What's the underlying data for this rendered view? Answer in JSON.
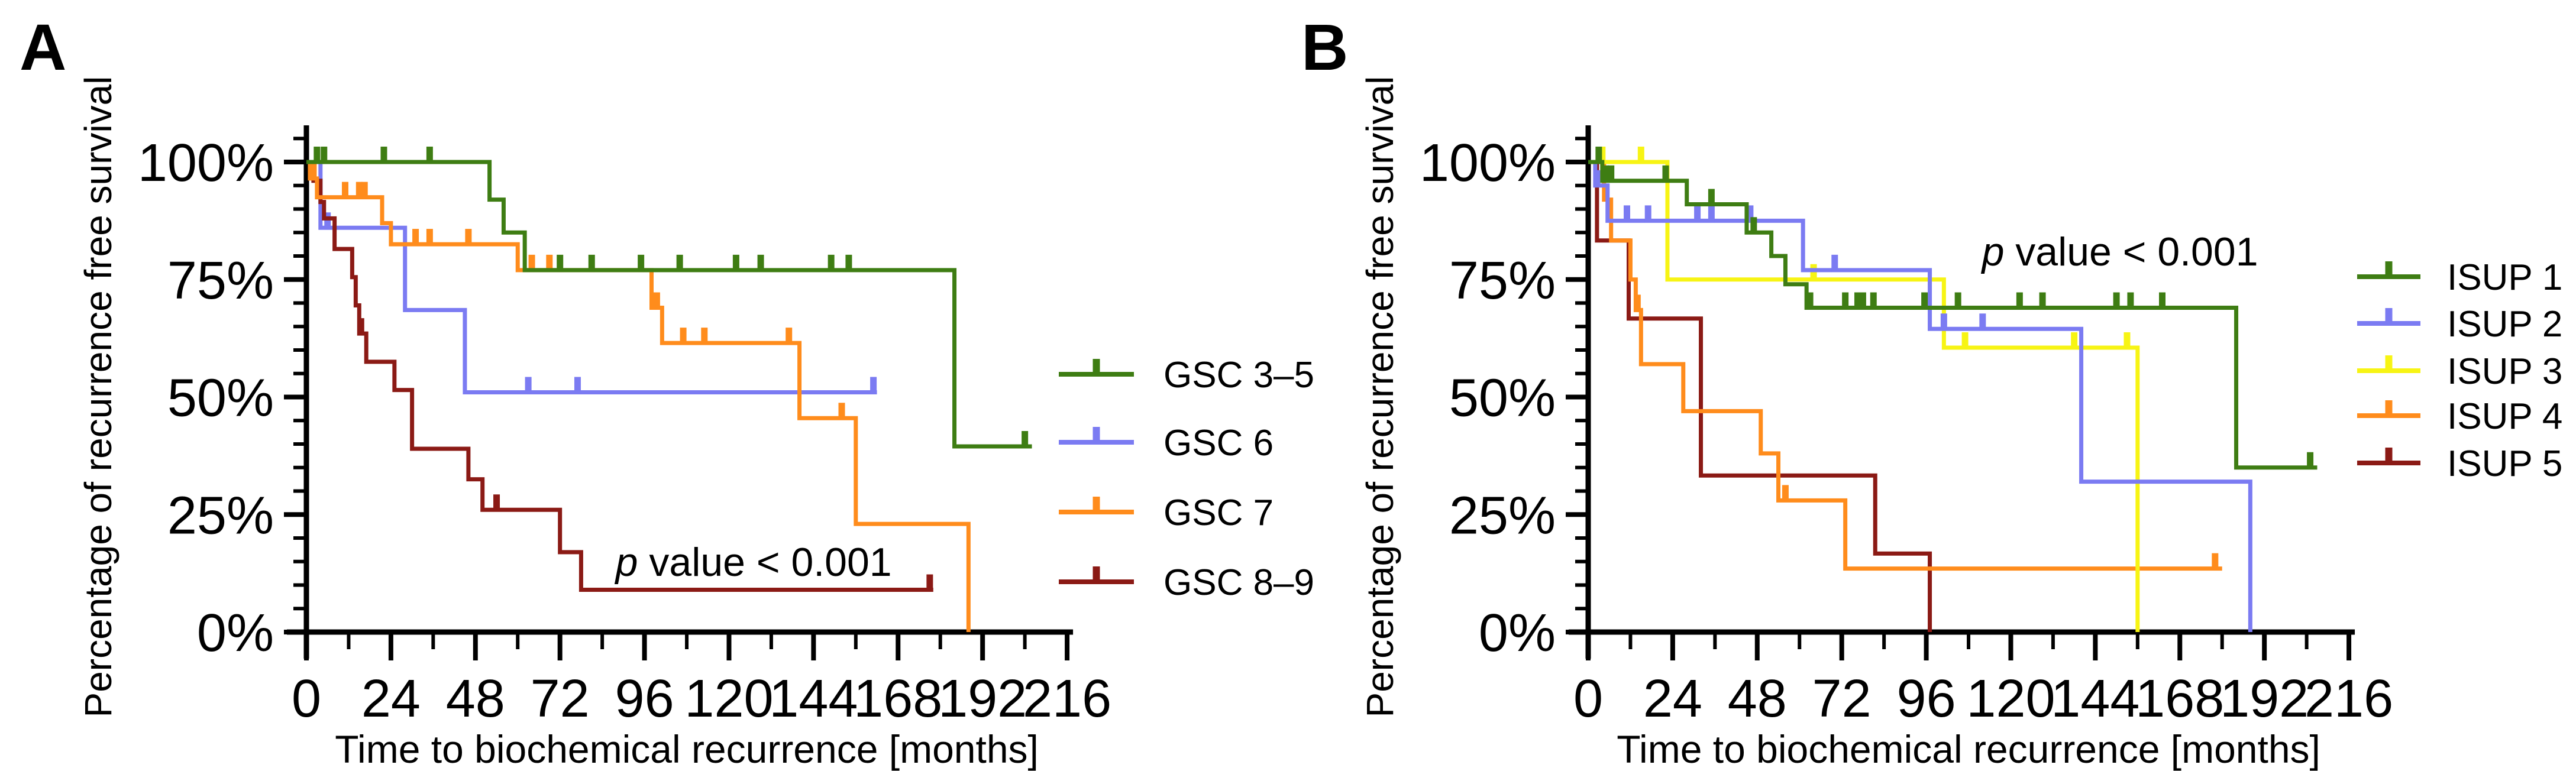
{
  "figure": {
    "background": "#ffffff",
    "axis_color": "#000000"
  },
  "chart_data": [
    {
      "type": "line",
      "subtype": "kaplan-meier-step",
      "panel_label": "A",
      "xlabel": "Time to biochemical recurrence [months]",
      "ylabel": "Percentage of recurrence free survival",
      "xlim": [
        0,
        216
      ],
      "ylim": [
        0,
        100
      ],
      "x_ticks": [
        0,
        24,
        48,
        72,
        96,
        120,
        144,
        168,
        192,
        216
      ],
      "x_minor_tick_step": 12,
      "y_ticks_pct": [
        0,
        25,
        50,
        75,
        100
      ],
      "y_tick_labels": [
        "0%",
        "25%",
        "50%",
        "75%",
        "100%"
      ],
      "y_minor_tick_step": 5,
      "grid": false,
      "legend_position": "right-outside",
      "annotation": {
        "italic_part": "p",
        "rest": " value < 0.001",
        "x_months": 127,
        "y_pct": 15
      },
      "series": [
        {
          "name": "GSC 6",
          "color": "#7b7bf2",
          "steps_month_pct": [
            [
              0,
              100
            ],
            [
              4,
              86
            ],
            [
              28,
              68.5
            ],
            [
              45,
              51
            ]
          ],
          "end_month": 162,
          "censors_month_pct": [
            [
              6,
              86
            ],
            [
              63,
              51
            ],
            [
              77,
              51
            ],
            [
              161,
              51
            ]
          ]
        },
        {
          "name": "GSC 8–9",
          "color": "#8b1a15",
          "steps_month_pct": [
            [
              0,
              100
            ],
            [
              2,
              96
            ],
            [
              4,
              91.5
            ],
            [
              5,
              88
            ],
            [
              8,
              81.5
            ],
            [
              13,
              75.5
            ],
            [
              14,
              69.5
            ],
            [
              15,
              63.5
            ],
            [
              17,
              57.5
            ],
            [
              25,
              51.5
            ],
            [
              30,
              39
            ],
            [
              46,
              32.5
            ],
            [
              50,
              26
            ],
            [
              72,
              17
            ],
            [
              78,
              9
            ]
          ],
          "end_month": 178,
          "censors_month_pct": [
            [
              15.5,
              63.5
            ],
            [
              54,
              26
            ],
            [
              177,
              9
            ]
          ]
        },
        {
          "name": "GSC 7",
          "color": "#ff8c1c",
          "steps_month_pct": [
            [
              0,
              100
            ],
            [
              1,
              96.5
            ],
            [
              3,
              92.5
            ],
            [
              21.5,
              87
            ],
            [
              24,
              82.5
            ],
            [
              60,
              77
            ],
            [
              98,
              69
            ],
            [
              101,
              61.5
            ],
            [
              140,
              45.5
            ],
            [
              156,
              23
            ],
            [
              188,
              0
            ]
          ],
          "end_month": 188,
          "censors_month_pct": [
            [
              2,
              96.5
            ],
            [
              11,
              92.5
            ],
            [
              15,
              92.5
            ],
            [
              16.5,
              92.5
            ],
            [
              31,
              82.5
            ],
            [
              35,
              82.5
            ],
            [
              46,
              82.5
            ],
            [
              64,
              77
            ],
            [
              69,
              77
            ],
            [
              99.5,
              69
            ],
            [
              107,
              61.5
            ],
            [
              113,
              61.5
            ],
            [
              137,
              61.5
            ],
            [
              152,
              45.5
            ]
          ]
        },
        {
          "name": "GSC 3–5",
          "color": "#3e7d13",
          "steps_month_pct": [
            [
              0,
              100
            ],
            [
              52,
              92
            ],
            [
              56,
              85
            ],
            [
              62,
              77
            ],
            [
              184,
              39.5
            ]
          ],
          "end_month": 206,
          "censors_month_pct": [
            [
              3,
              100
            ],
            [
              5,
              100
            ],
            [
              22,
              100
            ],
            [
              35,
              100
            ],
            [
              72,
              77
            ],
            [
              81,
              77
            ],
            [
              95,
              77
            ],
            [
              106,
              77
            ],
            [
              122,
              77
            ],
            [
              129,
              77
            ],
            [
              149,
              77
            ],
            [
              154,
              77
            ],
            [
              204,
              39.5
            ]
          ]
        }
      ],
      "legend_order": [
        "GSC 3–5",
        "GSC 6",
        "GSC 7",
        "GSC 8–9"
      ]
    },
    {
      "type": "line",
      "subtype": "kaplan-meier-step",
      "panel_label": "B",
      "xlabel": "Time to biochemical recurrence [months]",
      "ylabel": "Percentage of recurrence free survival",
      "xlim": [
        0,
        216
      ],
      "ylim": [
        0,
        100
      ],
      "x_ticks": [
        0,
        24,
        48,
        72,
        96,
        120,
        144,
        168,
        192,
        216
      ],
      "x_minor_tick_step": 12,
      "y_ticks_pct": [
        0,
        25,
        50,
        75,
        100
      ],
      "y_tick_labels": [
        "0%",
        "25%",
        "50%",
        "75%",
        "100%"
      ],
      "y_minor_tick_step": 5,
      "grid": false,
      "legend_position": "right-outside",
      "annotation": {
        "italic_part": "p",
        "rest": " value < 0.001",
        "x_months": 151,
        "y_pct": 81
      },
      "series": [
        {
          "name": "ISUP 5",
          "color": "#8b1a15",
          "steps_month_pct": [
            [
              0,
              100
            ],
            [
              2.5,
              83.3
            ],
            [
              11.5,
              66.7
            ],
            [
              32,
              33.3
            ],
            [
              81.5,
              16.7
            ],
            [
              97,
              0
            ]
          ],
          "end_month": 97,
          "censors_month_pct": []
        },
        {
          "name": "ISUP 4",
          "color": "#ff8c1c",
          "steps_month_pct": [
            [
              0,
              100
            ],
            [
              4.5,
              92
            ],
            [
              6.5,
              83.3
            ],
            [
              12,
              75
            ],
            [
              13.5,
              68.5
            ],
            [
              15,
              57
            ],
            [
              27,
              47
            ],
            [
              49,
              38
            ],
            [
              54,
              28
            ],
            [
              73,
              13.5
            ]
          ],
          "end_month": 180,
          "censors_month_pct": [
            [
              5,
              92
            ],
            [
              14,
              68.5
            ],
            [
              56,
              28
            ],
            [
              178,
              13.5
            ]
          ]
        },
        {
          "name": "ISUP 3",
          "color": "#f7f414",
          "steps_month_pct": [
            [
              0,
              100
            ],
            [
              22.5,
              75
            ],
            [
              101,
              60.5
            ],
            [
              156,
              0
            ]
          ],
          "end_month": 156,
          "censors_month_pct": [
            [
              4,
              100
            ],
            [
              15,
              100
            ],
            [
              64,
              75
            ],
            [
              107,
              60.5
            ],
            [
              138,
              60.5
            ],
            [
              153,
              60.5
            ]
          ]
        },
        {
          "name": "ISUP 2",
          "color": "#7b7bf2",
          "steps_month_pct": [
            [
              0,
              100
            ],
            [
              2,
              95
            ],
            [
              5.5,
              87.5
            ],
            [
              61,
              77
            ],
            [
              97,
              64.5
            ],
            [
              140,
              32
            ],
            [
              188,
              0
            ]
          ],
          "end_month": 188,
          "censors_month_pct": [
            [
              2.5,
              95
            ],
            [
              11,
              87.5
            ],
            [
              17,
              87.5
            ],
            [
              31,
              87.5
            ],
            [
              35,
              87.5
            ],
            [
              46,
              87.5
            ],
            [
              70,
              77
            ],
            [
              101,
              64.5
            ],
            [
              112,
              64.5
            ]
          ]
        },
        {
          "name": "ISUP 1",
          "color": "#3e7d13",
          "steps_month_pct": [
            [
              0,
              100
            ],
            [
              4,
              96
            ],
            [
              28,
              91
            ],
            [
              45,
              85
            ],
            [
              52,
              80
            ],
            [
              56,
              74
            ],
            [
              62,
              69
            ]
          ],
          "end_month": 207,
          "censors_month_pct": [
            [
              3,
              100
            ],
            [
              5,
              96
            ],
            [
              6.5,
              96
            ],
            [
              22,
              96
            ],
            [
              35,
              91
            ],
            [
              47,
              85
            ],
            [
              63,
              69
            ],
            [
              73,
              69
            ],
            [
              76.5,
              69
            ],
            [
              78,
              69
            ],
            [
              81,
              69
            ],
            [
              95.5,
              69
            ],
            [
              105,
              69
            ],
            [
              122.5,
              69
            ],
            [
              129,
              69
            ],
            [
              150,
              69
            ],
            [
              154,
              69
            ],
            [
              163,
              69
            ],
            [
              205,
              35
            ]
          ]
        }
      ],
      "extra_steps_note": "ISUP 1 drops from 69% to 35% at month 184 and runs to month 207",
      "isup1_late_step": {
        "drop_month": 184,
        "drop_to_pct": 35
      },
      "legend_order": [
        "ISUP 1",
        "ISUP 2",
        "ISUP 3",
        "ISUP 4",
        "ISUP 5"
      ]
    }
  ]
}
